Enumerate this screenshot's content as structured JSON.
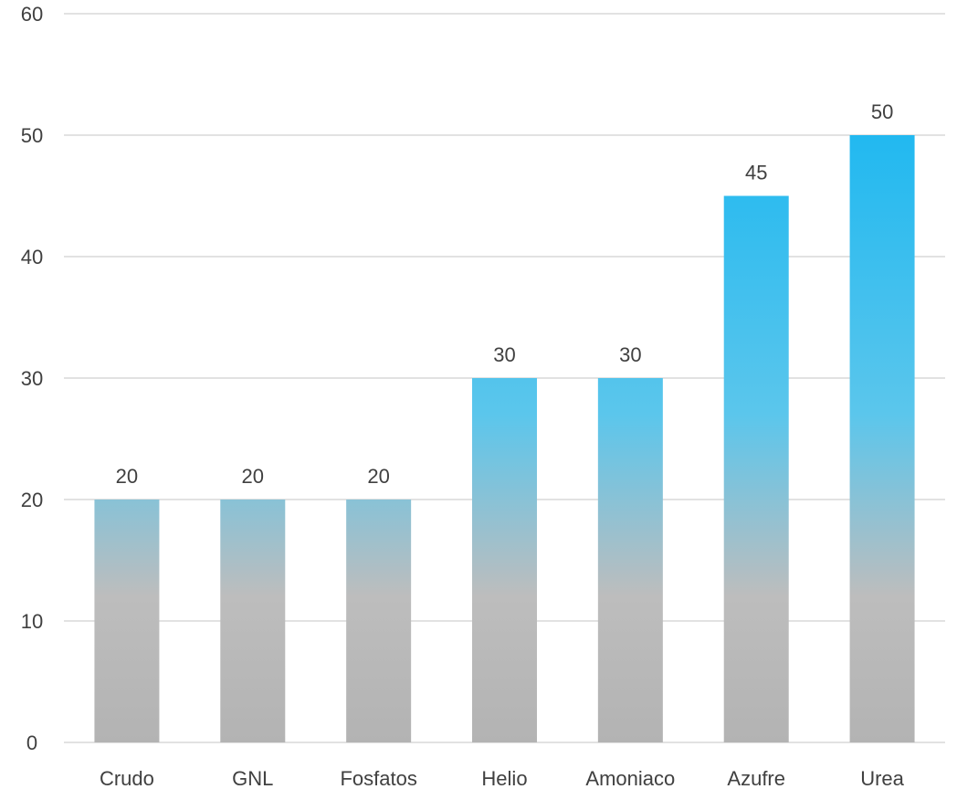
{
  "chart_data": {
    "type": "bar",
    "title": "",
    "xlabel": "",
    "ylabel": "",
    "categories": [
      "Crudo",
      "GNL",
      "Fosfatos",
      "Helio",
      "Amoniaco",
      "Azufre",
      "Urea"
    ],
    "values": [
      20,
      20,
      20,
      30,
      30,
      45,
      50
    ],
    "data_labels": [
      "20",
      "20",
      "20",
      "30",
      "30",
      "45",
      "50"
    ],
    "ylim": [
      0,
      60
    ],
    "yticks": [
      0,
      10,
      20,
      30,
      40,
      50,
      60
    ],
    "ytick_labels": [
      "0",
      "10",
      "20",
      "30",
      "40",
      "50",
      "60"
    ],
    "grid": true,
    "legend": "none",
    "colors": {
      "bar_top": "#1fb8f0",
      "bar_mid": "#5bc6ec",
      "bar_bottom": "#b3b3b3",
      "gridline": "#d9d9d9",
      "text": "#404040"
    }
  }
}
